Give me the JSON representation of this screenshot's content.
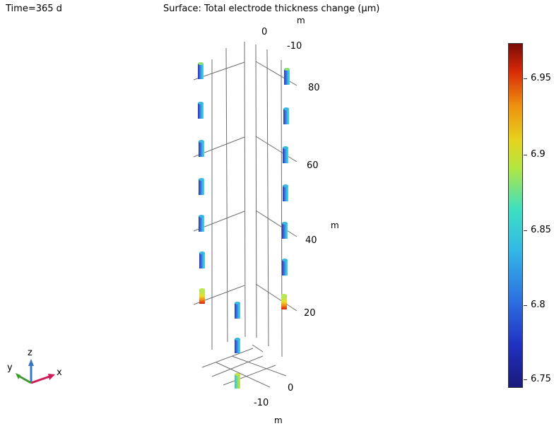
{
  "header": {
    "time_label": "Time=365 d",
    "title": "Surface: Total electrode thickness change (µm)"
  },
  "axes": {
    "top_unit": "m",
    "top_ticks": [
      "0",
      "-10"
    ],
    "vertical_unit": "m",
    "vertical_ticks": [
      "80",
      "60",
      "40",
      "20"
    ],
    "bottom_ticks": [
      "0",
      "-10"
    ],
    "bottom_unit": "m"
  },
  "colorbar": {
    "ticks": [
      "6.95",
      "6.9",
      "6.85",
      "6.8",
      "6.75"
    ],
    "min": 6.74,
    "max": 6.975,
    "colormap": "Rainbow"
  },
  "triad": {
    "x_label": "x",
    "y_label": "y",
    "z_label": "z",
    "x_color": "#d01a5a",
    "y_color": "#3a9a2a",
    "z_color": "#3a78c0"
  }
}
